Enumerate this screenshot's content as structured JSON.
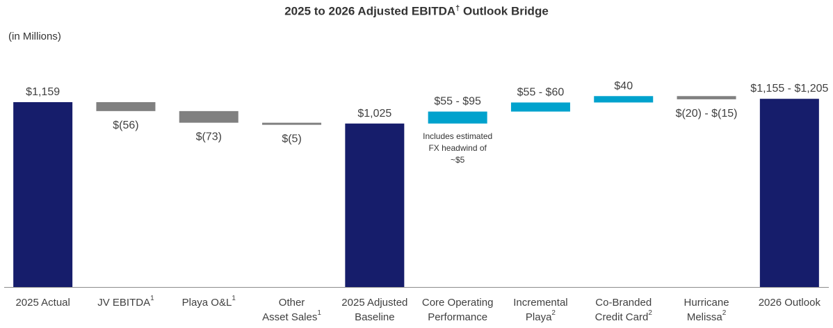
{
  "chart_data": {
    "type": "bar",
    "subtype": "waterfall",
    "title": "2025 to 2026 Adjusted EBITDA",
    "title_mark": "†",
    "title_suffix": " Outlook Bridge",
    "units_label": "(in Millions)",
    "ylim": [
      0,
      1300
    ],
    "colors": {
      "total": "#161d6b",
      "decrease": "#808080",
      "increase": "#00a2cd",
      "axis": "#8c8c8c",
      "label": "#404040"
    },
    "bars": [
      {
        "category": "2025 Actual",
        "sup": "",
        "kind": "total",
        "start": 0,
        "end": 1159,
        "label": "$1,159",
        "label_pos": "above"
      },
      {
        "category": "JV EBITDA",
        "sup": "1",
        "kind": "decrease",
        "start": 1159,
        "end": 1103,
        "label": "$(56)",
        "label_pos": "below"
      },
      {
        "category": "Playa O&L",
        "sup": "1",
        "kind": "decrease",
        "start": 1103,
        "end": 1030,
        "label": "$(73)",
        "label_pos": "below"
      },
      {
        "category": "Other Asset Sales",
        "sup": "1",
        "kind": "decrease",
        "start": 1030,
        "end": 1025,
        "label": "$(5)",
        "label_pos": "below"
      },
      {
        "category": "2025 Adjusted Baseline",
        "sup": "",
        "kind": "total",
        "start": 0,
        "end": 1025,
        "label": "$1,025",
        "label_pos": "above"
      },
      {
        "category": "Core Operating Performance",
        "sup": "",
        "kind": "increase",
        "start": 1025,
        "end": 1100,
        "label": "$55 - $95",
        "label_pos": "above"
      },
      {
        "category": "Incremental Playa",
        "sup": "2",
        "kind": "increase",
        "start": 1100,
        "end": 1157,
        "label": "$55 - $60",
        "label_pos": "above"
      },
      {
        "category": "Co-Branded Credit Card",
        "sup": "2",
        "kind": "increase",
        "start": 1157,
        "end": 1197,
        "label": "$40",
        "label_pos": "above"
      },
      {
        "category": "Hurricane Melissa",
        "sup": "2",
        "kind": "decrease",
        "start": 1197,
        "end": 1177,
        "label": "$(20) - $(15)",
        "label_pos": "below"
      },
      {
        "category": "2026 Outlook",
        "sup": "",
        "kind": "total",
        "start": 0,
        "end": 1180,
        "label": "$1,155 - $1,205",
        "label_pos": "above"
      }
    ],
    "annotation": {
      "bar": 5,
      "lines": [
        "Includes estimated",
        "FX headwind of",
        "~$5"
      ]
    }
  }
}
